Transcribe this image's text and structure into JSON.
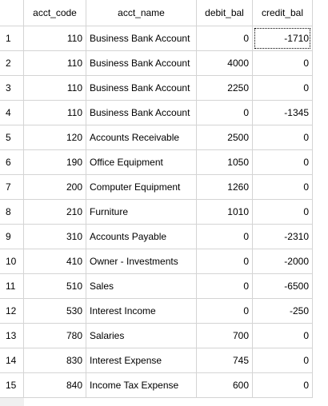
{
  "grid": {
    "columns": [
      "acct_code",
      "acct_name",
      "debit_bal",
      "credit_bal"
    ],
    "rows": [
      {
        "num": "1",
        "acct_code": "110",
        "acct_name": "Business Bank Account",
        "debit_bal": "0",
        "credit_bal": "-1710"
      },
      {
        "num": "2",
        "acct_code": "110",
        "acct_name": "Business Bank Account",
        "debit_bal": "4000",
        "credit_bal": "0"
      },
      {
        "num": "3",
        "acct_code": "110",
        "acct_name": "Business Bank Account",
        "debit_bal": "2250",
        "credit_bal": "0"
      },
      {
        "num": "4",
        "acct_code": "110",
        "acct_name": "Business Bank Account",
        "debit_bal": "0",
        "credit_bal": "-1345"
      },
      {
        "num": "5",
        "acct_code": "120",
        "acct_name": "Accounts Receivable",
        "debit_bal": "2500",
        "credit_bal": "0"
      },
      {
        "num": "6",
        "acct_code": "190",
        "acct_name": "Office Equipment",
        "debit_bal": "1050",
        "credit_bal": "0"
      },
      {
        "num": "7",
        "acct_code": "200",
        "acct_name": "Computer Equipment",
        "debit_bal": "1260",
        "credit_bal": "0"
      },
      {
        "num": "8",
        "acct_code": "210",
        "acct_name": "Furniture",
        "debit_bal": "1010",
        "credit_bal": "0"
      },
      {
        "num": "9",
        "acct_code": "310",
        "acct_name": "Accounts Payable",
        "debit_bal": "0",
        "credit_bal": "-2310"
      },
      {
        "num": "10",
        "acct_code": "410",
        "acct_name": "Owner - Investments",
        "debit_bal": "0",
        "credit_bal": "-2000"
      },
      {
        "num": "11",
        "acct_code": "510",
        "acct_name": "Sales",
        "debit_bal": "0",
        "credit_bal": "-6500"
      },
      {
        "num": "12",
        "acct_code": "530",
        "acct_name": "Interest Income",
        "debit_bal": "0",
        "credit_bal": "-250"
      },
      {
        "num": "13",
        "acct_code": "780",
        "acct_name": "Salaries",
        "debit_bal": "700",
        "credit_bal": "0"
      },
      {
        "num": "14",
        "acct_code": "830",
        "acct_name": "Interest Expense",
        "debit_bal": "745",
        "credit_bal": "0"
      },
      {
        "num": "15",
        "acct_code": "840",
        "acct_name": "Income Tax Expense",
        "debit_bal": "600",
        "credit_bal": "0"
      }
    ]
  },
  "selection": {
    "row": 0,
    "column": "credit_bal"
  }
}
